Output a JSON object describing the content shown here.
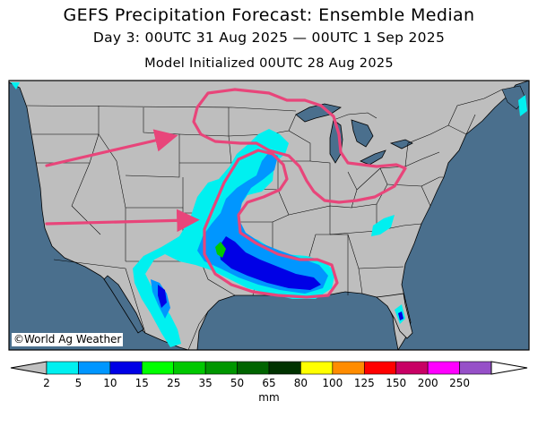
{
  "header": {
    "title": "GEFS Precipitation Forecast: Ensemble Median",
    "period": "Day 3: 00UTC 31 Aug 2025 — 00UTC 1 Sep 2025",
    "init": "Model Initialized 00UTC 28 Aug 2025"
  },
  "map": {
    "region": "Contiguous United States",
    "credit": "©World Ag Weather",
    "colors": {
      "ocean": "#4a6f8d",
      "land": "#bebebe",
      "borders": "#000000",
      "annotation": "#e8457a"
    }
  },
  "legend": {
    "units": "mm",
    "ticks": [
      "2",
      "5",
      "10",
      "15",
      "25",
      "35",
      "50",
      "65",
      "80",
      "100",
      "125",
      "150",
      "200",
      "250"
    ],
    "colors": [
      "#00f0f0",
      "#0096ff",
      "#0000e6",
      "#00ff00",
      "#00c800",
      "#009600",
      "#006400",
      "#003200",
      "#ffff00",
      "#ff8c00",
      "#ff0000",
      "#c80064",
      "#ff00ff",
      "#9650c8"
    ],
    "below_min_color": "#c0c0c0",
    "above_max_color": "#ffffff"
  }
}
